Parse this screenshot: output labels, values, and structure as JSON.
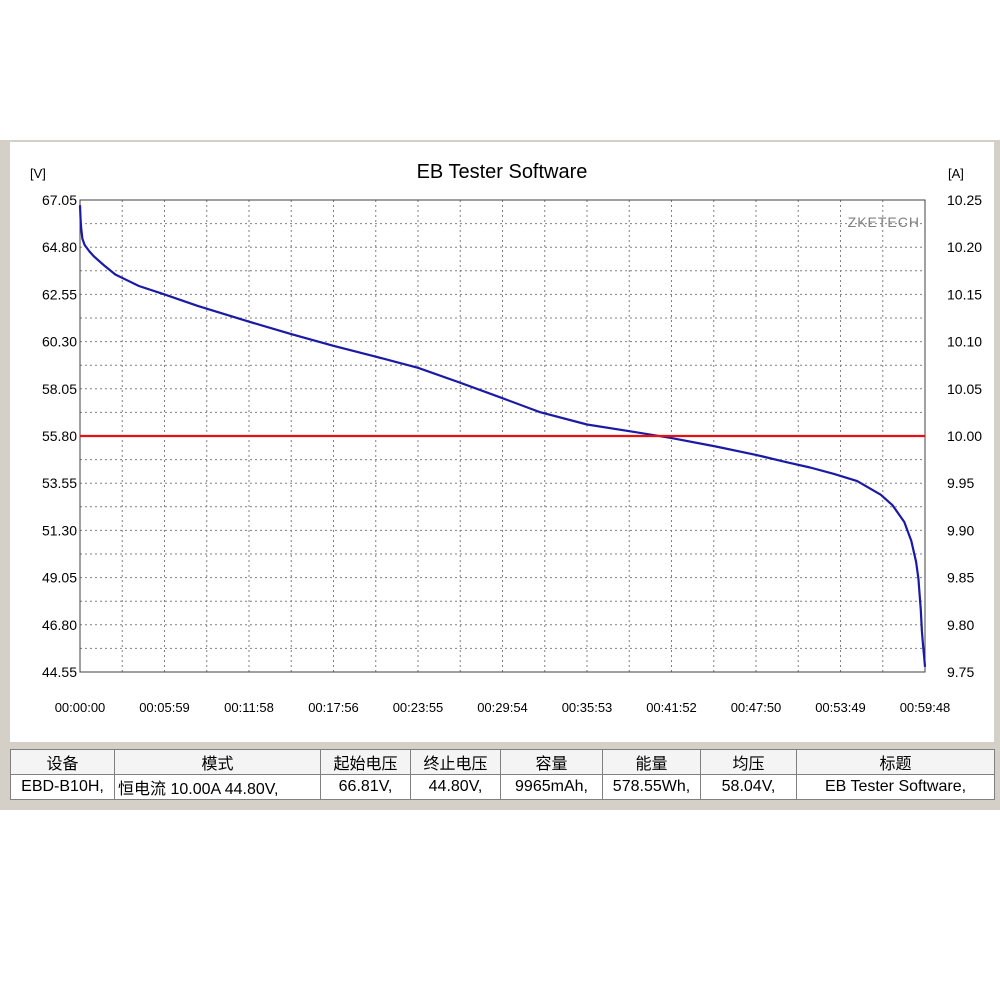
{
  "chart_data": {
    "type": "line",
    "title": "EB Tester Software",
    "watermark": "ZKETECH",
    "left_unit": "[V]",
    "right_unit": "[A]",
    "y_ticks": [
      "67.05",
      "64.80",
      "62.55",
      "60.30",
      "58.05",
      "55.80",
      "53.55",
      "51.30",
      "49.05",
      "46.80",
      "44.55"
    ],
    "y2_ticks": [
      "10.25",
      "10.20",
      "10.15",
      "10.10",
      "10.05",
      "10.00",
      "9.95",
      "9.90",
      "9.85",
      "9.80",
      "9.75"
    ],
    "x_ticks": [
      "00:00:00",
      "00:05:59",
      "00:11:58",
      "00:17:56",
      "00:23:55",
      "00:29:54",
      "00:35:53",
      "00:41:52",
      "00:47:50",
      "00:53:49",
      "00:59:48"
    ],
    "ylim": [
      44.55,
      67.05
    ],
    "y2lim": [
      9.75,
      10.25
    ],
    "xlim_seconds": [
      0,
      3588
    ],
    "grid": true,
    "series": [
      {
        "axis": "left",
        "color": "#1a1aa6",
        "x": [
          0,
          2,
          5,
          10,
          20,
          40,
          60,
          100,
          150,
          250,
          359,
          500,
          718,
          900,
          1076,
          1250,
          1435,
          1600,
          1794,
          1950,
          2153,
          2350,
          2512,
          2700,
          2871,
          3000,
          3100,
          3200,
          3300,
          3400,
          3450,
          3500,
          3530,
          3550,
          3560,
          3570,
          3575,
          3580,
          3585,
          3588
        ],
        "values": [
          66.8,
          66.2,
          65.7,
          65.2,
          64.9,
          64.6,
          64.35,
          63.95,
          63.5,
          62.95,
          62.55,
          62.0,
          61.25,
          60.65,
          60.1,
          59.6,
          59.05,
          58.4,
          57.6,
          56.95,
          56.35,
          56.0,
          55.7,
          55.3,
          54.9,
          54.55,
          54.3,
          54.0,
          53.65,
          53.0,
          52.5,
          51.7,
          50.8,
          49.8,
          49.0,
          47.5,
          46.5,
          45.8,
          45.2,
          44.8
        ]
      },
      {
        "axis": "right",
        "color": "#e81010",
        "x": [
          0,
          3588
        ],
        "values": [
          10.0,
          10.0
        ]
      }
    ]
  },
  "table": {
    "headers": [
      "设备",
      "模式",
      "起始电压",
      "终止电压",
      "容量",
      "能量",
      "均压",
      "标题"
    ],
    "row": [
      "EBD-B10H,",
      "恒电流  10.00A  44.80V,",
      "66.81V,",
      "44.80V,",
      "9965mAh,",
      "578.55Wh,",
      "58.04V,",
      "EB Tester Software,"
    ]
  }
}
